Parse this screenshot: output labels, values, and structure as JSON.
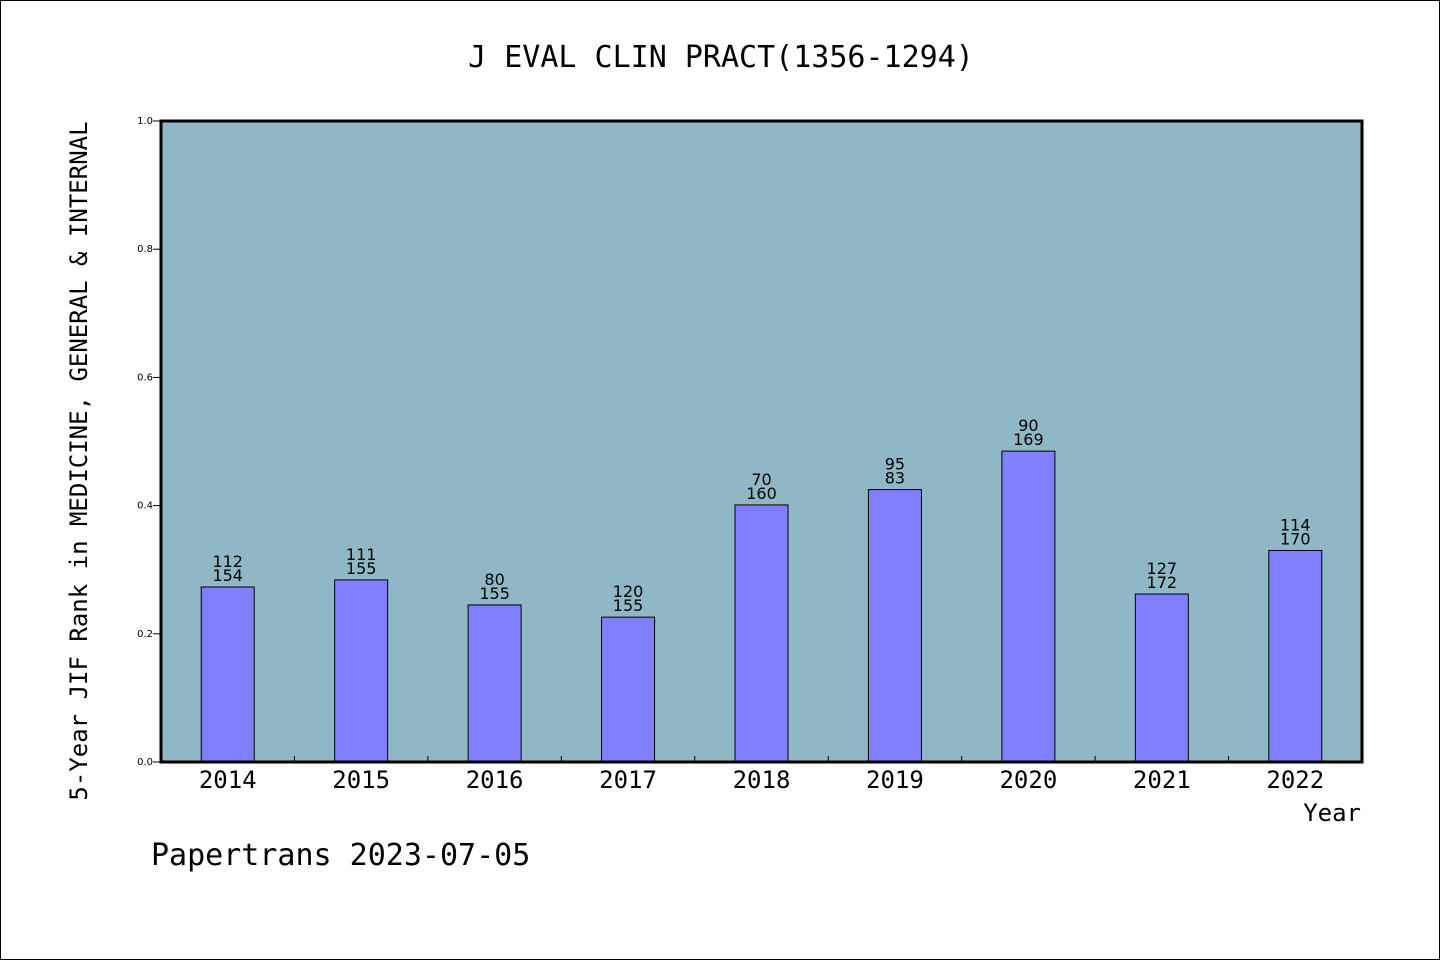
{
  "chart_data": {
    "type": "bar",
    "title": "J EVAL CLIN PRACT(1356-1294)",
    "xlabel": "Year",
    "ylabel": "5-Year JIF Rank in MEDICINE, GENERAL & INTERNAL",
    "ylim": [
      0,
      1
    ],
    "yticks": [
      "0.0",
      "0.2",
      "0.4",
      "0.6",
      "0.8",
      "1.0"
    ],
    "categories": [
      "2014",
      "2015",
      "2016",
      "2017",
      "2018",
      "2019",
      "2020",
      "2021",
      "2022"
    ],
    "values": [
      0.273,
      0.284,
      0.245,
      0.226,
      0.401,
      0.425,
      0.485,
      0.262,
      0.33
    ],
    "labels_top": [
      "112",
      "111",
      "80",
      "120",
      "70",
      "95",
      "90",
      "127",
      "114"
    ],
    "labels_bottom": [
      "154",
      "155",
      "155",
      "155",
      "160",
      "83",
      "169",
      "172",
      "170"
    ],
    "grid": false,
    "legend": "none"
  },
  "footer": "Papertrans 2023-07-05",
  "colors": {
    "plot_bg": "#8fb7c5",
    "bar_fill": "#8080ff",
    "bar_stroke": "#000000"
  }
}
